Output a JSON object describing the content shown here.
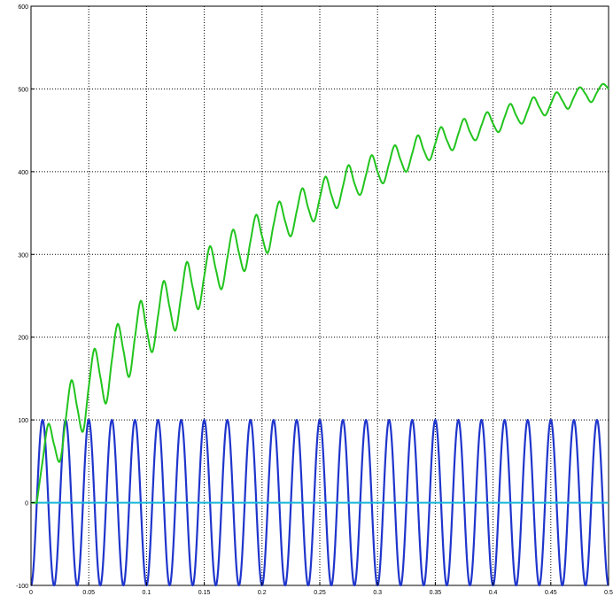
{
  "chart_data": {
    "type": "line",
    "title": "",
    "xlabel": "",
    "ylabel": "",
    "xlim": [
      0,
      0.5
    ],
    "ylim": [
      -100,
      600
    ],
    "grid": true,
    "legend": "none",
    "xticks": [
      0,
      0.05,
      0.1,
      0.15,
      0.2,
      0.25,
      0.3,
      0.35,
      0.4,
      0.45,
      0.5
    ],
    "xtick_labels": [
      "0",
      "0.05",
      "0.1",
      "0.15",
      "0.2",
      "0.25",
      "0.3",
      "0.35",
      "0.4",
      "0.45",
      "0.5"
    ],
    "yticks": [
      -100,
      0,
      100,
      200,
      300,
      400,
      500,
      600
    ],
    "ytick_labels": [
      "-100",
      "0",
      "100",
      "200",
      "300",
      "400",
      "500",
      "600"
    ],
    "colors": {
      "green": "#22c41e",
      "blue": "#1f35cc",
      "cyan": "#19b8d8",
      "grid": "#000000"
    },
    "series": [
      {
        "color": "#1f35cc",
        "style": "sine",
        "amplitude": 100,
        "frequency_hz": 50,
        "x_range": [
          0,
          0.5
        ]
      },
      {
        "color": "#19b8d8",
        "style": "constant",
        "value": 0,
        "x_range": [
          0.005,
          0.5
        ]
      },
      {
        "color": "#22c41e",
        "style": "ripple",
        "x": [
          0.005,
          0.01,
          0.015,
          0.02,
          0.025,
          0.03,
          0.035,
          0.04,
          0.045,
          0.05,
          0.055,
          0.06,
          0.065,
          0.07,
          0.075,
          0.08,
          0.085,
          0.09,
          0.095,
          0.1,
          0.105,
          0.11,
          0.115,
          0.12,
          0.125,
          0.13,
          0.135,
          0.14,
          0.145,
          0.15,
          0.155,
          0.16,
          0.165,
          0.17,
          0.175,
          0.18,
          0.185,
          0.19,
          0.195,
          0.2,
          0.205,
          0.21,
          0.215,
          0.22,
          0.225,
          0.23,
          0.235,
          0.24,
          0.245,
          0.25,
          0.255,
          0.26,
          0.265,
          0.27,
          0.275,
          0.28,
          0.285,
          0.29,
          0.295,
          0.3,
          0.305,
          0.31,
          0.315,
          0.32,
          0.325,
          0.33,
          0.335,
          0.34,
          0.345,
          0.35,
          0.355,
          0.36,
          0.365,
          0.37,
          0.375,
          0.38,
          0.385,
          0.39,
          0.395,
          0.4,
          0.405,
          0.41,
          0.415,
          0.42,
          0.425,
          0.43,
          0.435,
          0.44,
          0.445,
          0.45,
          0.455,
          0.46,
          0.465,
          0.47,
          0.475,
          0.48,
          0.485,
          0.49,
          0.495,
          0.5
        ],
        "y": [
          0,
          50,
          95,
          70,
          50,
          100,
          148,
          115,
          86,
          140,
          186,
          152,
          120,
          172,
          216,
          184,
          152,
          200,
          244,
          210,
          182,
          226,
          268,
          236,
          208,
          250,
          291,
          260,
          234,
          274,
          310,
          282,
          258,
          296,
          330,
          302,
          280,
          316,
          348,
          322,
          302,
          336,
          364,
          340,
          322,
          352,
          380,
          356,
          340,
          368,
          394,
          372,
          356,
          382,
          408,
          386,
          372,
          396,
          420,
          400,
          386,
          410,
          432,
          414,
          400,
          422,
          444,
          426,
          414,
          434,
          454,
          438,
          426,
          446,
          464,
          448,
          438,
          456,
          472,
          458,
          448,
          466,
          482,
          468,
          458,
          474,
          490,
          478,
          468,
          482,
          496,
          486,
          476,
          490,
          502,
          494,
          484,
          496,
          506,
          500
        ]
      }
    ]
  }
}
